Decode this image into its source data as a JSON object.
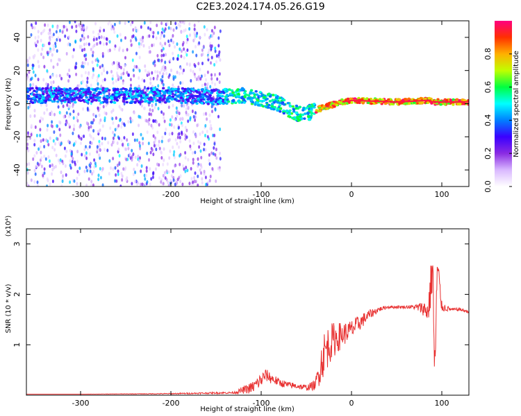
{
  "title": "C2E3.2024.174.05.26.G19",
  "chart_data": [
    {
      "type": "heatmap",
      "name": "spectrogram",
      "xlabel": "Height of straight line (km)",
      "ylabel": "Frequency (Hz)",
      "xlim": [
        -360,
        130
      ],
      "ylim": [
        -50,
        50
      ],
      "xticks": [
        -300,
        -200,
        -100,
        0,
        100
      ],
      "yticks": [
        40,
        20,
        0,
        -20,
        -40
      ],
      "xtick_labels": [
        "-300",
        "-200",
        "-100",
        "0",
        "100"
      ],
      "ytick_labels": [
        "40",
        "20",
        "0",
        "-20",
        "-40"
      ],
      "ridge": {
        "x": [
          -360,
          -300,
          -200,
          -150,
          -120,
          -100,
          -80,
          -60,
          -50,
          -30,
          -10,
          0,
          50,
          85,
          90,
          100,
          130
        ],
        "y": [
          5,
          5,
          5,
          4,
          5,
          3,
          0,
          -6,
          -6,
          -2,
          1,
          2,
          1,
          2,
          1,
          1,
          1
        ]
      },
      "noise_region": {
        "x_from": -360,
        "x_to": -145
      },
      "colorbar": {
        "label": "Normalized spectral amplitude",
        "range": [
          0.0,
          1.0
        ],
        "ticks": [
          0.0,
          0.2,
          0.4,
          0.6,
          0.8
        ],
        "tick_labels": [
          "0.0",
          "0.2",
          "0.4",
          "0.6",
          "0.8"
        ],
        "colors": [
          "#ffffff",
          "#d9b8ff",
          "#8a2be2",
          "#3a00ff",
          "#0080ff",
          "#00ffff",
          "#00ff40",
          "#c0ff00",
          "#ffb000",
          "#ff3000",
          "#ff0080"
        ]
      }
    },
    {
      "type": "line",
      "name": "snr",
      "xlabel": "Height of straight line (km)",
      "ylabel": "SNR (10 * v/v)",
      "scale_label": "(x10⁴)",
      "color": "#e83030",
      "xlim": [
        -360,
        130
      ],
      "ylim": [
        0,
        3.3
      ],
      "xticks": [
        -300,
        -200,
        -100,
        0,
        100
      ],
      "yticks": [
        1,
        2,
        3
      ],
      "xtick_labels": [
        "-300",
        "-200",
        "-100",
        "0",
        "100"
      ],
      "ytick_labels": [
        "1",
        "2",
        "3"
      ],
      "x": [
        -360,
        -300,
        -200,
        -130,
        -110,
        -100,
        -95,
        -90,
        -80,
        -70,
        -60,
        -50,
        -40,
        -35,
        -30,
        -25,
        -20,
        -15,
        -10,
        -5,
        0,
        10,
        20,
        30,
        40,
        50,
        60,
        70,
        80,
        85,
        90,
        92,
        95,
        100,
        110,
        120,
        130
      ],
      "y": [
        0.02,
        0.02,
        0.03,
        0.05,
        0.15,
        0.3,
        0.4,
        0.35,
        0.25,
        0.2,
        0.18,
        0.15,
        0.2,
        0.55,
        0.85,
        1.0,
        1.1,
        1.15,
        1.2,
        1.25,
        1.3,
        1.45,
        1.6,
        1.7,
        1.75,
        1.75,
        1.75,
        1.75,
        1.72,
        1.65,
        2.6,
        0.3,
        2.5,
        1.75,
        1.7,
        1.7,
        1.65
      ],
      "variability": [
        0,
        0,
        0.01,
        0.02,
        0.12,
        0.15,
        0.12,
        0.12,
        0.08,
        0.07,
        0.06,
        0.06,
        0.1,
        0.35,
        0.45,
        0.4,
        0.35,
        0.3,
        0.25,
        0.2,
        0.2,
        0.15,
        0.1,
        0.05,
        0.03,
        0.03,
        0.03,
        0.05,
        0.15,
        0.25,
        0.6,
        0.5,
        0.5,
        0.1,
        0.03,
        0.03,
        0.03
      ]
    }
  ]
}
